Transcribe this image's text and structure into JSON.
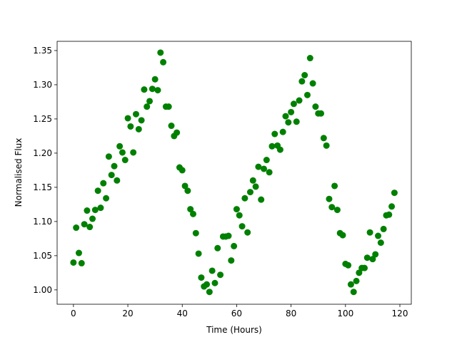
{
  "chart_data": {
    "type": "scatter",
    "xlabel": "Time (Hours)",
    "ylabel": "Normalised Flux",
    "color": "#008000",
    "xlim": [
      -6,
      124.2
    ],
    "ylim": [
      0.979,
      1.3635
    ],
    "xticks": [
      0,
      20,
      40,
      60,
      80,
      100,
      120
    ],
    "yticks": [
      {
        "value": 1,
        "label": "1.00"
      },
      1.05,
      {
        "value": 1.1,
        "label": "1.10"
      },
      1.15,
      {
        "value": 1.2,
        "label": "1.20"
      },
      1.25,
      {
        "value": 1.3,
        "label": "1.30"
      },
      1.35
    ],
    "x": [
      0,
      1,
      2,
      3,
      4,
      5,
      6,
      7,
      8,
      9,
      10,
      11,
      12,
      13,
      14,
      15,
      16,
      17,
      18,
      19,
      20,
      21,
      22,
      23,
      24,
      25,
      26,
      27,
      28,
      29,
      30,
      31,
      32,
      33,
      34,
      35,
      36,
      37,
      38,
      39,
      40,
      41,
      42,
      43,
      44,
      45,
      46,
      47,
      48,
      49,
      50,
      51,
      52,
      53,
      54,
      55,
      56,
      57,
      58,
      59,
      60,
      61,
      62,
      63,
      64,
      65,
      66,
      67,
      68,
      69,
      70,
      71,
      72,
      73,
      74,
      75,
      76,
      77,
      78,
      79,
      80,
      81,
      82,
      83,
      84,
      85,
      86,
      87,
      88,
      89,
      90,
      91,
      92,
      93,
      94,
      95,
      96,
      97,
      98,
      99,
      100,
      101,
      102,
      103,
      104,
      105,
      106,
      107,
      108,
      109,
      110,
      111,
      112,
      113,
      114,
      115,
      116,
      117,
      118
    ],
    "values": [
      1.04,
      1.091,
      1.054,
      1.039,
      1.096,
      1.116,
      1.092,
      1.104,
      1.117,
      1.145,
      1.12,
      1.156,
      1.134,
      1.195,
      1.168,
      1.181,
      1.16,
      1.21,
      1.201,
      1.19,
      1.251,
      1.239,
      1.201,
      1.257,
      1.235,
      1.248,
      1.293,
      1.268,
      1.276,
      1.294,
      1.308,
      1.292,
      1.347,
      1.333,
      1.268,
      1.268,
      1.24,
      1.225,
      1.23,
      1.179,
      1.175,
      1.152,
      1.145,
      1.118,
      1.111,
      1.083,
      1.053,
      1.018,
      1.005,
      1.008,
      0.997,
      1.028,
      1.01,
      1.061,
      1.022,
      1.078,
      1.078,
      1.079,
      1.043,
      1.064,
      1.118,
      1.109,
      1.093,
      1.134,
      1.084,
      1.143,
      1.16,
      1.151,
      1.18,
      1.132,
      1.177,
      1.19,
      1.172,
      1.21,
      1.228,
      1.211,
      1.205,
      1.231,
      1.254,
      1.245,
      1.26,
      1.272,
      1.246,
      1.277,
      1.305,
      1.314,
      1.285,
      1.339,
      1.302,
      1.268,
      1.258,
      1.258,
      1.222,
      1.211,
      1.133,
      1.121,
      1.152,
      1.117,
      1.083,
      1.08,
      1.038,
      1.036,
      1.008,
      0.997,
      1.013,
      1.025,
      1.032,
      1.032,
      1.047,
      1.084,
      1.045,
      1.052,
      1.079,
      1.069,
      1.089,
      1.109,
      1.11,
      1.122,
      1.142
    ]
  }
}
